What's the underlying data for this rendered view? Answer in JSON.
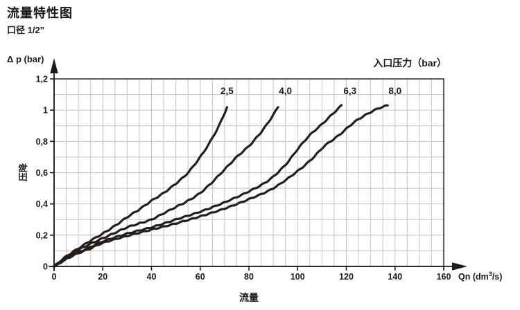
{
  "header": {
    "title": "流量特性图",
    "subtitle": "口径 1/2”"
  },
  "chart": {
    "y_axis_title": "Δ p (bar)",
    "y_axis_label": "压降",
    "x_axis_label": "流量",
    "x_unit_prefix": "Qn (dm",
    "x_unit_sup": "3",
    "x_unit_suffix": "/s)",
    "legend_title": "入口压力（bar）"
  },
  "colors": {
    "curve": "#241f1d",
    "grid": "#c4c4c4",
    "axis": "#1a1a1a",
    "text": "#1a1a1a",
    "background": "#ffffff"
  },
  "chart_data": {
    "type": "line",
    "title": "流量特性图 (口径 1/2”)",
    "xlabel": "流量 Qn (dm3/s)",
    "ylabel": "压降 Δ p (bar)",
    "legend_title": "入口压力（bar）",
    "xlim": [
      0,
      160
    ],
    "ylim": [
      0,
      1.2
    ],
    "x_ticks": [
      0,
      20,
      40,
      60,
      80,
      100,
      120,
      140,
      160
    ],
    "x_tick_labels": [
      "0",
      "20",
      "40",
      "60",
      "80",
      "100",
      "120",
      "140",
      "160"
    ],
    "y_ticks": [
      0,
      0.2,
      0.4,
      0.6,
      0.8,
      1.0,
      1.2
    ],
    "y_tick_labels": [
      "0",
      "0,2",
      "0,4",
      "0,6",
      "0,8",
      "1",
      "1,2"
    ],
    "grid": {
      "on": true,
      "minor_x_step": 5,
      "minor_y_step": 0.1
    },
    "legend_position": "top-right",
    "series": [
      {
        "name": "2,5",
        "label_x": 71,
        "points": [
          [
            0,
            0
          ],
          [
            3,
            0.04
          ],
          [
            6,
            0.075
          ],
          [
            10,
            0.115
          ],
          [
            15,
            0.165
          ],
          [
            20,
            0.21
          ],
          [
            25,
            0.26
          ],
          [
            30,
            0.315
          ],
          [
            35,
            0.365
          ],
          [
            40,
            0.42
          ],
          [
            45,
            0.47
          ],
          [
            50,
            0.53
          ],
          [
            55,
            0.6
          ],
          [
            60,
            0.7
          ],
          [
            63,
            0.77
          ],
          [
            66,
            0.85
          ],
          [
            68,
            0.91
          ],
          [
            70,
            0.98
          ],
          [
            71,
            1.02
          ]
        ]
      },
      {
        "name": "4,0",
        "label_x": 95,
        "points": [
          [
            0,
            0
          ],
          [
            3,
            0.035
          ],
          [
            6,
            0.065
          ],
          [
            10,
            0.105
          ],
          [
            15,
            0.145
          ],
          [
            20,
            0.18
          ],
          [
            25,
            0.215
          ],
          [
            30,
            0.25
          ],
          [
            35,
            0.275
          ],
          [
            40,
            0.3
          ],
          [
            45,
            0.34
          ],
          [
            50,
            0.38
          ],
          [
            55,
            0.42
          ],
          [
            60,
            0.47
          ],
          [
            65,
            0.54
          ],
          [
            70,
            0.62
          ],
          [
            75,
            0.7
          ],
          [
            80,
            0.77
          ],
          [
            84,
            0.84
          ],
          [
            87,
            0.9
          ],
          [
            90,
            0.97
          ],
          [
            92,
            1.02
          ]
        ]
      },
      {
        "name": "6,3",
        "label_x": 121.5,
        "points": [
          [
            0,
            0
          ],
          [
            3,
            0.03
          ],
          [
            6,
            0.06
          ],
          [
            10,
            0.09
          ],
          [
            15,
            0.125
          ],
          [
            20,
            0.16
          ],
          [
            30,
            0.21
          ],
          [
            40,
            0.25
          ],
          [
            50,
            0.3
          ],
          [
            60,
            0.35
          ],
          [
            70,
            0.41
          ],
          [
            80,
            0.48
          ],
          [
            88,
            0.55
          ],
          [
            95,
            0.65
          ],
          [
            100,
            0.75
          ],
          [
            105,
            0.84
          ],
          [
            110,
            0.91
          ],
          [
            114,
            0.97
          ],
          [
            118,
            1.03
          ]
        ]
      },
      {
        "name": "8,0",
        "label_x": 140,
        "points": [
          [
            0,
            0
          ],
          [
            3,
            0.028
          ],
          [
            6,
            0.055
          ],
          [
            10,
            0.085
          ],
          [
            15,
            0.115
          ],
          [
            20,
            0.15
          ],
          [
            30,
            0.195
          ],
          [
            40,
            0.235
          ],
          [
            50,
            0.275
          ],
          [
            60,
            0.32
          ],
          [
            70,
            0.37
          ],
          [
            80,
            0.43
          ],
          [
            90,
            0.5
          ],
          [
            100,
            0.61
          ],
          [
            106,
            0.69
          ],
          [
            111,
            0.77
          ],
          [
            117,
            0.84
          ],
          [
            123,
            0.92
          ],
          [
            128,
            0.97
          ],
          [
            133,
            1.01
          ],
          [
            137,
            1.03
          ]
        ]
      }
    ]
  }
}
